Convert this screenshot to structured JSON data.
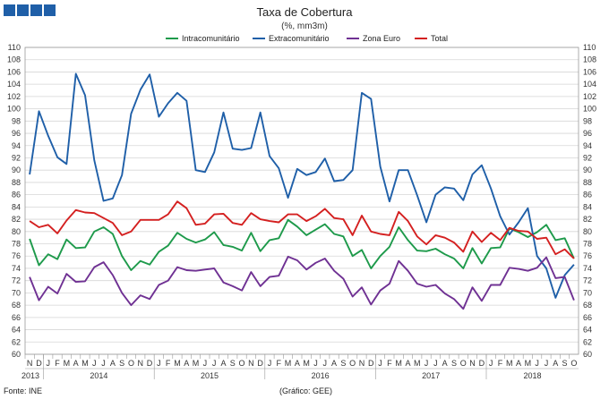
{
  "header": {
    "brand_blocks": [
      "#1f5fa8",
      "#1f5fa8",
      "#1f5fa8",
      "#1f5fa8"
    ]
  },
  "footer": {
    "source": "Fonte: INE",
    "credit": "(Gráfico: GEE)"
  },
  "chart_data": {
    "type": "line",
    "title": "Taxa de Cobertura",
    "subtitle": "(%, mm3m)",
    "ylim": [
      60,
      110
    ],
    "yticks": [
      60,
      62,
      64,
      66,
      68,
      70,
      72,
      74,
      76,
      78,
      80,
      82,
      84,
      86,
      88,
      90,
      92,
      94,
      96,
      98,
      100,
      102,
      104,
      106,
      108,
      110
    ],
    "grid": true,
    "legend_position": "top",
    "x": [
      "N",
      "D",
      "J",
      "F",
      "M",
      "A",
      "M",
      "J",
      "J",
      "A",
      "S",
      "O",
      "N",
      "D",
      "J",
      "F",
      "M",
      "A",
      "M",
      "J",
      "J",
      "A",
      "S",
      "O",
      "N",
      "D",
      "J",
      "F",
      "M",
      "A",
      "M",
      "J",
      "J",
      "A",
      "S",
      "O",
      "N",
      "D",
      "J",
      "F",
      "M",
      "A",
      "M",
      "J",
      "J",
      "A",
      "S",
      "O",
      "N",
      "D",
      "J",
      "F",
      "M",
      "A",
      "M",
      "J",
      "J",
      "A",
      "S",
      "O"
    ],
    "year_labels": [
      {
        "label": "2013",
        "index": 0
      },
      {
        "label": "2014",
        "index": 7.5
      },
      {
        "label": "2015",
        "index": 19.5
      },
      {
        "label": "2016",
        "index": 31.5
      },
      {
        "label": "2017",
        "index": 43.5
      },
      {
        "label": "2018",
        "index": 54.5
      }
    ],
    "series": [
      {
        "name": "Intracomunitário",
        "color": "#1e9a4b",
        "values": [
          78.8,
          74.5,
          76.3,
          75.5,
          78.7,
          77.3,
          77.4,
          80.0,
          80.7,
          79.6,
          76.0,
          73.7,
          75.2,
          74.6,
          76.7,
          77.7,
          79.8,
          78.8,
          78.2,
          78.7,
          79.9,
          77.8,
          77.5,
          76.9,
          79.8,
          76.8,
          78.6,
          78.9,
          81.9,
          80.8,
          79.4,
          80.3,
          81.2,
          79.6,
          79.2,
          76.0,
          77.0,
          74.0,
          76.0,
          77.5,
          80.7,
          78.6,
          76.9,
          76.8,
          77.2,
          76.3,
          75.6,
          74.0,
          77.3,
          74.8,
          77.3,
          77.4,
          80.5,
          79.9,
          79.1,
          79.9,
          81.1,
          78.6,
          78.9,
          75.6
        ]
      },
      {
        "name": "Extracomunitário",
        "color": "#1f5fa8",
        "values": [
          89.3,
          99.6,
          95.6,
          92.1,
          91.0,
          105.7,
          102.2,
          91.6,
          85.0,
          85.4,
          89.2,
          99.2,
          103.1,
          105.6,
          98.7,
          100.9,
          102.6,
          101.3,
          90.0,
          89.7,
          92.9,
          99.4,
          93.5,
          93.3,
          93.6,
          99.4,
          92.3,
          90.3,
          85.5,
          90.2,
          89.2,
          89.7,
          91.9,
          88.2,
          88.4,
          90.0,
          102.6,
          101.6,
          90.6,
          84.9,
          90.0,
          90.0,
          85.9,
          81.5,
          86.0,
          87.2,
          87.0,
          85.1,
          89.3,
          90.8,
          87.0,
          82.5,
          79.5,
          81.5,
          83.8,
          76.0,
          74.0,
          69.2,
          72.9,
          74.6
        ]
      },
      {
        "name": "Zona Euro",
        "color": "#6f3193",
        "values": [
          72.6,
          68.8,
          71.0,
          69.9,
          73.1,
          71.8,
          71.9,
          74.2,
          75.0,
          72.9,
          70.0,
          68.0,
          69.6,
          69.0,
          71.3,
          72.0,
          74.2,
          73.7,
          73.6,
          73.8,
          74.0,
          71.7,
          71.1,
          70.4,
          73.4,
          71.1,
          72.6,
          72.8,
          75.9,
          75.3,
          73.8,
          74.9,
          75.6,
          73.6,
          72.3,
          69.4,
          70.9,
          68.1,
          70.4,
          71.5,
          75.2,
          73.6,
          71.5,
          71.0,
          71.3,
          69.9,
          69.0,
          67.4,
          70.9,
          68.7,
          71.3,
          71.3,
          74.1,
          73.9,
          73.6,
          74.1,
          75.8,
          72.4,
          72.6,
          68.8
        ]
      },
      {
        "name": "Total",
        "color": "#d42020",
        "values": [
          81.7,
          80.7,
          81.1,
          79.7,
          81.8,
          83.5,
          83.1,
          83.0,
          82.2,
          81.4,
          79.4,
          80.0,
          81.9,
          81.9,
          81.9,
          82.8,
          84.9,
          83.8,
          81.1,
          81.3,
          82.8,
          82.9,
          81.4,
          81.1,
          83.0,
          82.0,
          81.7,
          81.5,
          82.8,
          82.8,
          81.7,
          82.5,
          83.7,
          82.2,
          82.0,
          79.4,
          82.6,
          80.0,
          79.6,
          79.4,
          83.2,
          81.7,
          79.2,
          77.9,
          79.4,
          79.0,
          78.2,
          76.7,
          80.0,
          78.3,
          79.8,
          78.6,
          80.6,
          80.1,
          80.0,
          78.8,
          79.0,
          76.3,
          77.1,
          75.6
        ]
      }
    ]
  }
}
